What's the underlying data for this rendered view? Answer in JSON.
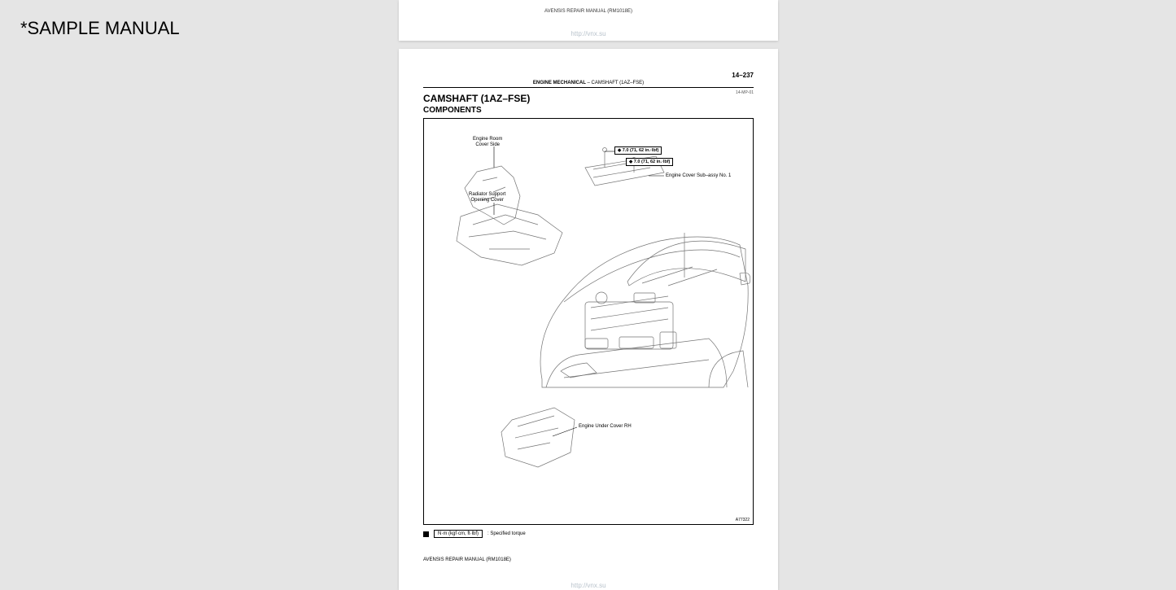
{
  "watermark": "*SAMPLE MANUAL",
  "top_fragment": {
    "manual_id": "AVENSIS REPAIR MANUAL   (RM1018E)",
    "url": "http://vnx.su"
  },
  "page": {
    "page_number": "14–237",
    "section_heading_bold": "ENGINE MECHANICAL",
    "section_heading_rest": "   –    CAMSHAFT (1AZ–FSE)",
    "doc_num": "14-MP-01",
    "title": "CAMSHAFT (1AZ–FSE)",
    "subtitle": "COMPONENTS",
    "labels": {
      "engine_room_cover_side": "Engine Room\nCover Side",
      "radiator_support": "Radiator Support\nOpening Cover",
      "engine_cover_sub": "Engine Cover Sub–assy No. 1",
      "engine_under_cover": "Engine Under Cover RH"
    },
    "torque1": "7.0 (71, 62 in.·lbf)",
    "torque2": "7.0 (71, 62 in.·lbf)",
    "figure_number": "A77322",
    "legend_box": "N·m (kgf·cm, ft·lbf)",
    "legend_rest": ": Specified torque",
    "footer_id": "AVENSIS REPAIR MANUAL   (RM1018E)",
    "footer_url": "http://vnx.su"
  },
  "colors": {
    "page_bg": "#ffffff",
    "body_bg": "#e5e5e5",
    "text": "#000000",
    "url": "#b9c3cc",
    "line": "#000000",
    "outline": "#747474"
  }
}
